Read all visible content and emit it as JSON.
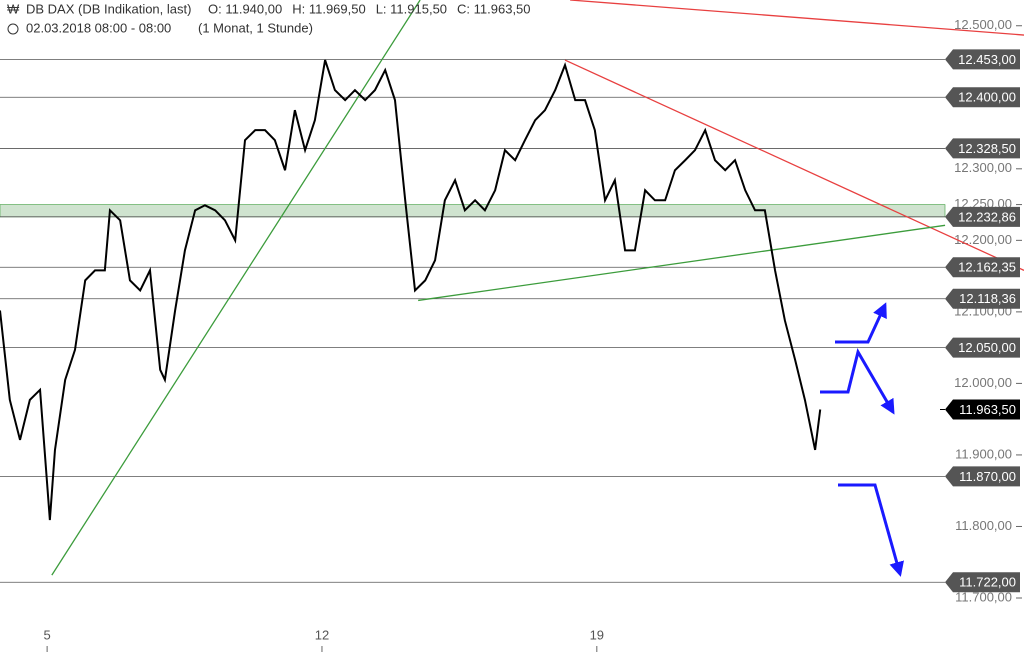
{
  "chart_data": {
    "type": "line",
    "instrument": "DB DAX (DB Indikation, last)",
    "ohlc": [
      "O: 11.940,00",
      "H: 11.969,50",
      "L: 11.915,50",
      "C: 11.963,50"
    ],
    "date": "02.03.2018 08:00 - 08:00",
    "period": "(1 Monat, 1 Stunde)",
    "x": [
      3.8,
      4.05,
      4.31,
      4.56,
      4.82,
      5.07,
      5.2,
      5.46,
      5.71,
      5.97,
      6.22,
      6.47,
      6.6,
      6.86,
      7.11,
      7.37,
      7.62,
      7.88,
      8.0,
      8.26,
      8.51,
      8.77,
      9.02,
      9.28,
      9.53,
      9.79,
      10.04,
      10.3,
      10.55,
      10.8,
      11.06,
      11.31,
      11.57,
      11.82,
      12.08,
      12.33,
      12.59,
      12.84,
      13.1,
      13.35,
      13.61,
      13.86,
      14.12,
      14.37,
      14.63,
      14.88,
      15.13,
      15.39,
      15.64,
      15.9,
      16.15,
      16.41,
      16.66,
      16.92,
      17.17,
      17.43,
      17.68,
      17.94,
      18.19,
      18.45,
      18.7,
      18.95,
      19.21,
      19.46,
      19.72,
      19.97,
      20.23,
      20.48,
      20.74,
      20.99,
      21.25,
      21.5,
      21.76,
      22.01,
      22.27,
      22.52,
      22.78,
      23.03,
      23.28,
      23.54,
      23.79,
      24.05,
      24.3,
      24.56,
      24.69
    ],
    "series": [
      {
        "color": "#000000",
        "values": [
          12102,
          11977,
          11921,
          11977,
          11991,
          11809,
          11907,
          12005,
          12047,
          12144,
          12158,
          12158,
          12242,
          12228,
          12144,
          12130,
          12158,
          12019,
          12005,
          12102,
          12186,
          12242,
          12249,
          12242,
          12228,
          12200,
          12340,
          12354,
          12354,
          12340,
          12298,
          12382,
          12326,
          12368,
          12452,
          12410,
          12396,
          12410,
          12396,
          12410,
          12438,
          12396,
          12256,
          12130,
          12144,
          12172,
          12256,
          12284,
          12242,
          12256,
          12242,
          12270,
          12326,
          12312,
          12340,
          12368,
          12382,
          12410,
          12445,
          12396,
          12396,
          12354,
          12256,
          12284,
          12186,
          12186,
          12270,
          12256,
          12256,
          12298,
          12312,
          12326,
          12354,
          12312,
          12298,
          12312,
          12270,
          12242,
          12242,
          12158,
          12088,
          12033,
          11977,
          11907,
          11963.5
        ]
      }
    ],
    "xlim": [
      3.8,
      29.88
    ],
    "ylim": [
      11624.5,
      12536
    ],
    "xticks": [
      5,
      12,
      19
    ],
    "yticks": [
      {
        "value": 12500,
        "label": "12.500,00"
      },
      {
        "value": 12300,
        "label": "12.300,00"
      },
      {
        "value": 12250,
        "label": "12.250,00"
      },
      {
        "value": 12200,
        "label": "12.200,00"
      },
      {
        "value": 12100,
        "label": "12.100,00"
      },
      {
        "value": 12000,
        "label": "12.000,00"
      },
      {
        "value": 11900,
        "label": "11.900,00"
      },
      {
        "value": 11800,
        "label": "11.800,00"
      },
      {
        "value": 11700,
        "label": "11.700,00"
      }
    ],
    "levels": [
      {
        "value": 12453,
        "label": "12.453,00"
      },
      {
        "value": 12400,
        "label": "12.400,00"
      },
      {
        "value": 12328.5,
        "label": "12.328,50"
      },
      {
        "value": 12232.86,
        "label": "12.232,86"
      },
      {
        "value": 12162.35,
        "label": "12.162,35"
      },
      {
        "value": 12118.36,
        "label": "12.118,36"
      },
      {
        "value": 12050,
        "label": "12.050,00"
      },
      {
        "value": 11870,
        "label": "11.870,00"
      },
      {
        "value": 11722,
        "label": "11.722,00"
      }
    ],
    "last": {
      "value": 11963.5,
      "label": "11.963,50"
    },
    "band": {
      "values": [
        12232.86,
        12250
      ],
      "color": "#cfe3cf"
    },
    "trendlines": [
      {
        "color": "#e84040",
        "x": [
          18.32,
          29.88
        ],
        "y": [
          12536,
          12487
        ]
      },
      {
        "color": "#3c9c3c",
        "x": [
          5.12,
          14.5
        ],
        "y": [
          11732,
          12536
        ]
      },
      {
        "color": "#e84040",
        "x": [
          18.19,
          29.88
        ],
        "y": [
          12452,
          12158
        ]
      },
      {
        "color": "#3c9c3c",
        "x": [
          14.45,
          27.87
        ],
        "y": [
          12116,
          12221
        ]
      }
    ]
  }
}
